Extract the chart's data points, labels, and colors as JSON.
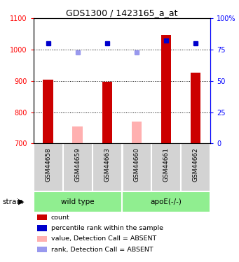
{
  "title": "GDS1300 / 1423165_a_at",
  "samples": [
    "GSM44658",
    "GSM44659",
    "GSM44663",
    "GSM44660",
    "GSM44661",
    "GSM44662"
  ],
  "ylim_left": [
    700,
    1100
  ],
  "ylim_right": [
    0,
    100
  ],
  "yticks_left": [
    700,
    800,
    900,
    1000,
    1100
  ],
  "yticks_right": [
    0,
    25,
    50,
    75,
    100
  ],
  "ytick_right_labels": [
    "0",
    "25",
    "50",
    "75",
    "100%"
  ],
  "count_values": [
    905,
    null,
    897,
    null,
    1048,
    927
  ],
  "absent_values": [
    null,
    755,
    null,
    770,
    null,
    null
  ],
  "rank_present": [
    80,
    null,
    80,
    null,
    82,
    80
  ],
  "rank_absent": [
    null,
    73,
    null,
    73,
    null,
    null
  ],
  "bar_width": 0.35,
  "count_color": "#cc0000",
  "absent_bar_color": "#ffb0b0",
  "rank_present_color": "#0000cc",
  "rank_absent_color": "#9999ee",
  "bg_color": "#ffffff",
  "label_area_color": "#d3d3d3",
  "group_color": "#90ee90",
  "legend_items": [
    {
      "label": "count",
      "color": "#cc0000"
    },
    {
      "label": "percentile rank within the sample",
      "color": "#0000cc"
    },
    {
      "label": "value, Detection Call = ABSENT",
      "color": "#ffb0b0"
    },
    {
      "label": "rank, Detection Call = ABSENT",
      "color": "#9999ee"
    }
  ]
}
